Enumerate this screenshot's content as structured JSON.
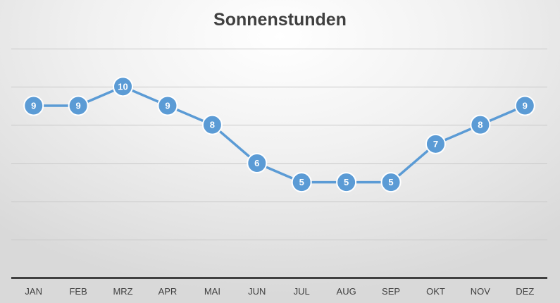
{
  "chart_data": {
    "type": "line",
    "title": "Sonnenstunden",
    "xlabel": "",
    "ylabel": "",
    "categories": [
      "JAN",
      "FEB",
      "MRZ",
      "APR",
      "MAI",
      "JUN",
      "JUL",
      "AUG",
      "SEP",
      "OKT",
      "NOV",
      "DEZ"
    ],
    "series": [
      {
        "values": [
          9,
          9,
          10,
          9,
          8,
          6,
          5,
          5,
          5,
          7,
          8,
          9
        ]
      }
    ],
    "ylim": [
      0,
      12
    ],
    "y_gridline_step": 2,
    "grid": true,
    "y_tick_labels_shown": false,
    "data_labels": true,
    "legend": "none",
    "colors": {
      "line": "#5b9bd5",
      "marker": "#5b9bd5",
      "gridline": "#c8c8c8",
      "axis": "#404040",
      "title": "#404040"
    }
  }
}
